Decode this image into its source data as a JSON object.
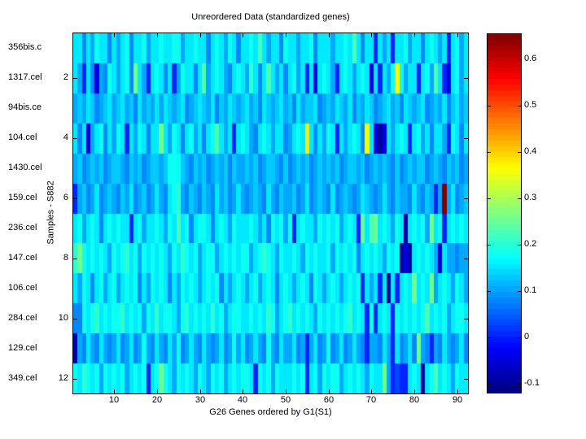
{
  "figure": {
    "background_color": "#ffffff",
    "axis_color": "#000000",
    "text_color": "#000000"
  },
  "chart_data": {
    "type": "heatmap",
    "title": "Unreordered Data (standardized genes)",
    "xlabel": "G26 Genes ordered by G1(S1)",
    "ylabel": "Samples - S882",
    "row_labels": [
      "356bis.c",
      "1317.cel",
      "94bis.ce",
      "104.cel",
      "1430.cel",
      "159.cel",
      "236.cel",
      "147.cel",
      "106.cel",
      "284.cel",
      "129.cel",
      "349.cel"
    ],
    "x_ticks": [
      10,
      20,
      30,
      40,
      50,
      60,
      70,
      80,
      90
    ],
    "y_ticks": [
      2,
      4,
      6,
      8,
      10,
      12
    ],
    "n_rows": 12,
    "n_cols": 92,
    "colormap": "jet",
    "value_range": [
      -0.12,
      0.655
    ],
    "colorbar_tick_values": [
      0.6,
      0.5,
      0.4,
      0.3,
      0.2,
      0.1,
      0,
      -0.1
    ],
    "colorbar_tick_labels": [
      "0.6",
      "0.5",
      "0.4",
      "0.3",
      "0.2",
      "0.1",
      "0",
      "-0.1"
    ],
    "grid": false,
    "legend_position": "colorbar-right",
    "values_encoding": {
      "note": "each char is one cell, value = min + index(char)*step",
      "charset": "0123456789abcdefghijklmnopqrstuv",
      "min": -0.12,
      "step": 0.025
    },
    "rows_encoded": [
      "bb8b9cbb8b9bc8bbc9bbcbbcc9bbcbb8bcb9cb8bbcbeb9bb8cbb9bbc8bbb9bbcbeb8bb5b9b5bbc9bb8bcb9b5bc9b",
      "b95b8398cb9bc8fb95bcb8b59cbb8be9bcb98bcb9db8beb9b8bc9b5b3bcb95bcb9bcb3b5b9cjc9bb5bc9eb53bc9b",
      "9a9ba89ab9ab9a8b9a9b9ba9ab89aba9b8a9ba9ab9a8ba9ab9a8b9aab89a9ba9b8a9ba89ab9a8ba9ab89a9b8ab9a",
      "b8b39bc8b9cb5b9cb8bbfb9cb8bc9b8bceb9b5bcb98bcb9bb89bcbkb8b9cb5b9bcb8jb313b9bcb5bc9b8bb95cb8b",
      "9a89a9a89aa98a9a89aa9accca98a9a89a9a8a99a9a89aa98a89a9a89a9a9a89aa9a89a9a98a89a9aa89a98a9a89",
      "59a89b89a98a9b89a89b98bcd98a98a98b9a89b989a98b98a99a89b89a98b89a989ba989b98a998b98a959v9b89a",
      "bc9bcb8bcbcbb5bc9bbcb9cbebc8bccb8bcb9cbbbcb9b8cbc9c5bcbb9cbcbc9bcb5fbefbcb9cb1bcbc9fbc5bcbcb",
      "dfcbcbcb9cbcdbc9cbcbcb9cbdcbc9bcc9bcbcbcc9bcdcb9cbbcb9cbcbbc9cbcbc8bcbcb9cbc131bcbcb93b99899",
      "b9cb8bc9bc9bcbc8b9cbcb8b9cbcb9bcbc8b9bcb9bc9bcb8bcb9bcb8cb9bcb9bcbc5b9b5b1b5bcbfbcbf9bcb9cb9",
      "88cbcdbcbccdbcbc9cbdbccb9cdbcbcbdbc9bccbbcbcbdc9bcdbcbcb9cbcbcbcdbcb5c5bcb5cbcbcbcebcbc9bccb",
      "198b98b989b89b89c98b98b9c89b98b989b89c9b89b98c98b99b8959b89c89b89b985998b95b89b8f98598b989b8",
      "cbdcbc9cbcbc9bcbc5bcfcb9cbcb9cb9cbc9bcbccb5cbc9cbbbcbc5bc9cbcc9bcbcb9cbbf95655bcb1bcebcb9cbbc"
    ]
  }
}
